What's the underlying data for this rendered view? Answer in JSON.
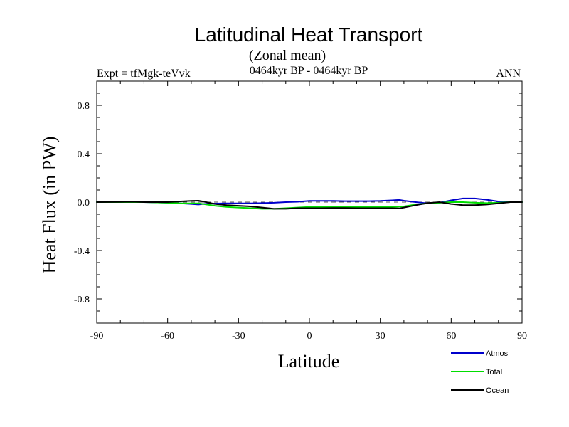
{
  "chart_data": {
    "type": "line",
    "title": "Latitudinal Heat Transport",
    "subtitle": "(Zonal mean)",
    "experiment_label": "Expt = tfMgk-teVvk",
    "period_label": "0464kyr BP - 0464kyr BP",
    "season_label": "ANN",
    "xlabel": "Latitude",
    "ylabel": "Heat Flux (in PW)",
    "xlim": [
      -90,
      90
    ],
    "ylim": [
      -1.0,
      1.0
    ],
    "x_ticks": [
      -90,
      -60,
      -30,
      0,
      30,
      60,
      90
    ],
    "x_tick_labels": [
      "-90",
      "-60",
      "-30",
      "0",
      "30",
      "60",
      "90"
    ],
    "y_ticks": [
      -0.8,
      -0.4,
      0.0,
      0.4,
      0.8
    ],
    "y_tick_labels": [
      "-0.8",
      "-0.4",
      "0.0",
      "0.4",
      "0.8"
    ],
    "zero_line": "dashed",
    "legend_position": "bottom-right",
    "series": [
      {
        "name": "Atmos",
        "color": "#0000cc",
        "x": [
          -90,
          -80,
          -70,
          -60,
          -55,
          -50,
          -47,
          -45,
          -40,
          -35,
          -30,
          -25,
          -20,
          -15,
          -10,
          -5,
          0,
          5,
          10,
          15,
          20,
          25,
          30,
          35,
          38,
          40,
          45,
          50,
          55,
          60,
          65,
          70,
          75,
          80,
          85,
          90
        ],
        "y": [
          0.0,
          0.0,
          0.0,
          -0.005,
          -0.01,
          -0.015,
          -0.02,
          -0.015,
          -0.012,
          -0.01,
          -0.01,
          -0.01,
          -0.008,
          -0.005,
          0.0,
          0.003,
          0.01,
          0.01,
          0.01,
          0.008,
          0.008,
          0.008,
          0.01,
          0.015,
          0.018,
          0.012,
          0.0,
          -0.01,
          -0.005,
          0.015,
          0.03,
          0.03,
          0.02,
          0.005,
          0.0,
          0.0
        ]
      },
      {
        "name": "Total",
        "color": "#00dd00",
        "x": [
          -90,
          -80,
          -70,
          -60,
          -55,
          -50,
          -47,
          -45,
          -40,
          -35,
          -30,
          -25,
          -20,
          -15,
          -10,
          -5,
          0,
          5,
          10,
          15,
          20,
          25,
          30,
          35,
          40,
          45,
          50,
          55,
          60,
          65,
          70,
          75,
          80,
          85,
          90
        ],
        "y": [
          0.0,
          0.0,
          0.0,
          -0.005,
          -0.01,
          -0.01,
          -0.01,
          -0.015,
          -0.03,
          -0.04,
          -0.045,
          -0.05,
          -0.055,
          -0.055,
          -0.05,
          -0.045,
          -0.04,
          -0.04,
          -0.04,
          -0.04,
          -0.04,
          -0.04,
          -0.04,
          -0.04,
          -0.035,
          -0.02,
          -0.01,
          -0.005,
          0.0,
          0.0,
          -0.005,
          -0.008,
          -0.005,
          0.0,
          0.0
        ]
      },
      {
        "name": "Ocean",
        "color": "#000000",
        "x": [
          -90,
          -80,
          -75,
          -70,
          -60,
          -55,
          -50,
          -47,
          -45,
          -40,
          -35,
          -30,
          -25,
          -20,
          -15,
          -10,
          -5,
          0,
          5,
          10,
          15,
          20,
          25,
          30,
          35,
          38,
          40,
          45,
          50,
          55,
          60,
          65,
          70,
          75,
          80,
          85,
          90
        ],
        "y": [
          0.0,
          0.002,
          0.003,
          0.0,
          0.0,
          0.005,
          0.01,
          0.012,
          0.005,
          -0.015,
          -0.025,
          -0.03,
          -0.035,
          -0.045,
          -0.055,
          -0.055,
          -0.05,
          -0.05,
          -0.05,
          -0.048,
          -0.048,
          -0.05,
          -0.05,
          -0.05,
          -0.05,
          -0.052,
          -0.045,
          -0.025,
          -0.008,
          0.0,
          -0.015,
          -0.025,
          -0.025,
          -0.02,
          -0.01,
          0.0,
          0.0
        ]
      }
    ]
  }
}
